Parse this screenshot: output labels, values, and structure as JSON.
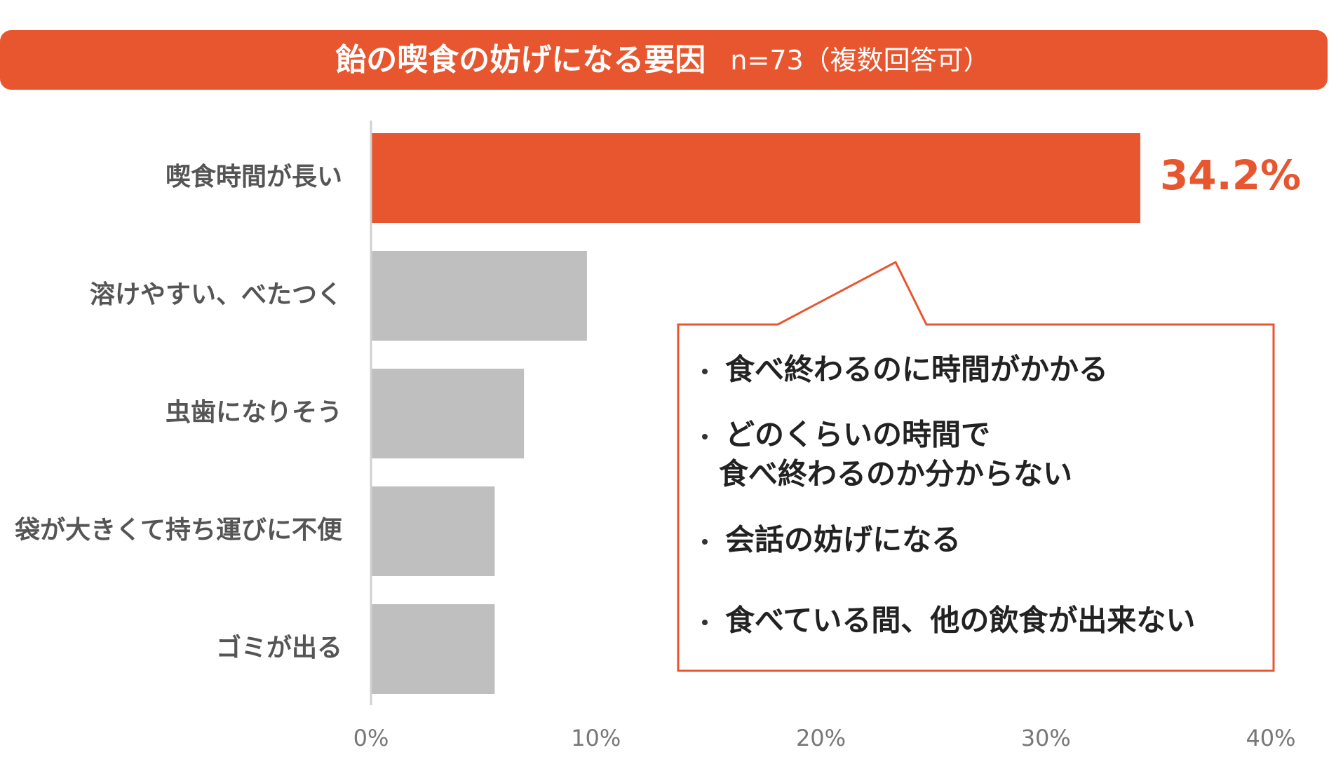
{
  "chart_data": {
    "type": "hbar",
    "title": "飴の喫食の妨げになる要因",
    "subtitle": "n=73（複数回答可）",
    "categories": [
      "喫食時間が長い",
      "溶けやすい、べたつく",
      "虫歯になりそう",
      "袋が大きくて持ち運びに不便",
      "ゴミが出る"
    ],
    "values": [
      34.2,
      9.6,
      6.8,
      5.5,
      5.5
    ],
    "value_labels": [
      "34.2%",
      null,
      null,
      null,
      null
    ],
    "colors": [
      "#e8562f",
      "#bfbfbf",
      "#bfbfbf",
      "#bfbfbf",
      "#bfbfbf"
    ],
    "xlim": [
      0,
      40
    ],
    "xticks": [
      {
        "value": 0,
        "label": "0%"
      },
      {
        "value": 10,
        "label": "10%"
      },
      {
        "value": 20,
        "label": "20%"
      },
      {
        "value": 30,
        "label": "30%"
      },
      {
        "value": 40,
        "label": "40%"
      }
    ],
    "annotations": [
      [
        "食べ終わるのに時間がかかる"
      ],
      [
        "どのくらいの時間で",
        "食べ終わるのか分からない"
      ],
      [
        "会話の妨げになる"
      ],
      [
        "食べている間、他の飲食が出来ない"
      ]
    ]
  }
}
